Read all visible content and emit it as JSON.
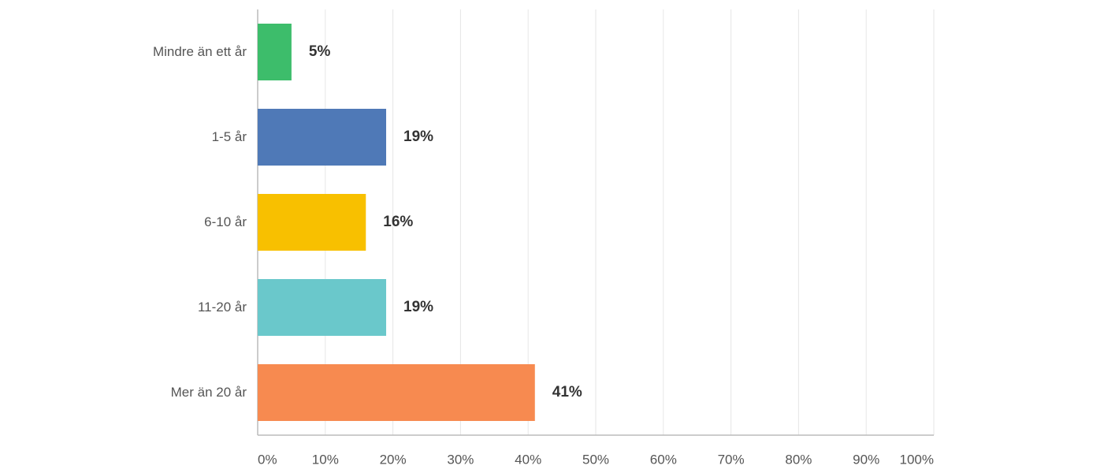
{
  "chart_data": {
    "type": "bar",
    "orientation": "horizontal",
    "categories": [
      "Mindre än ett år",
      "1-5 år",
      "6-10 år",
      "11-20 år",
      "Mer än 20 år"
    ],
    "values": [
      5,
      19,
      16,
      19,
      41
    ],
    "value_labels": [
      "5%",
      "19%",
      "16%",
      "19%",
      "41%"
    ],
    "colors": [
      "#3dbd6b",
      "#4f79b7",
      "#f8c000",
      "#6ac8cb",
      "#f78a50"
    ],
    "xlim": [
      0,
      100
    ],
    "xticks": [
      {
        "value": 0,
        "label": "0%"
      },
      {
        "value": 10,
        "label": "10%"
      },
      {
        "value": 20,
        "label": "20%"
      },
      {
        "value": 30,
        "label": "30%"
      },
      {
        "value": 40,
        "label": "40%"
      },
      {
        "value": 50,
        "label": "50%"
      },
      {
        "value": 60,
        "label": "60%"
      },
      {
        "value": 70,
        "label": "70%"
      },
      {
        "value": 80,
        "label": "80%"
      },
      {
        "value": 90,
        "label": "90%"
      },
      {
        "value": 100,
        "label": "100%"
      }
    ],
    "grid": true
  }
}
